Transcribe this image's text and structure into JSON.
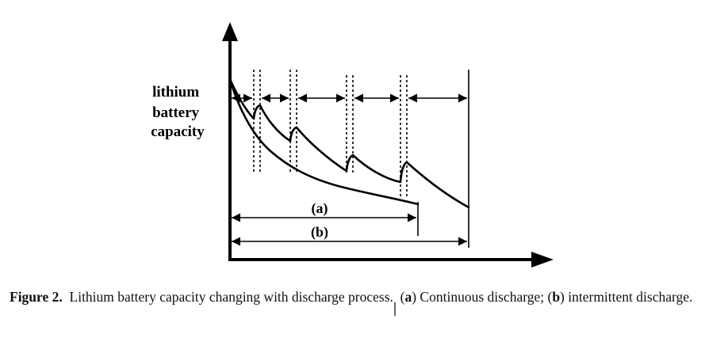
{
  "diagram": {
    "y_label_lines": [
      "lithium",
      "battery",
      "capacity"
    ],
    "label_a": "(a)",
    "label_b": "(b)"
  },
  "caption": {
    "figure_label": "Figure 2.",
    "main_text": "Lithium battery capacity changing with discharge process.",
    "a_marker": "a",
    "a_text": "Continuous discharge;",
    "b_marker": "b",
    "b_text": "intermittent discharge."
  }
}
